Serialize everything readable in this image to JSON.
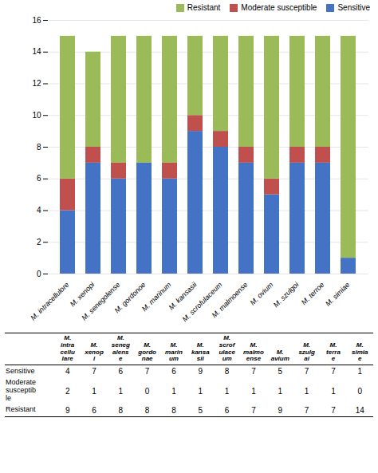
{
  "chart_data": {
    "type": "bar",
    "stacked": true,
    "categories": [
      "M. intracellulore",
      "M. xenopi",
      "M. senegolense",
      "M. gordonoe",
      "M. marinum",
      "M. kansasii",
      "M. scrofulaceum",
      "M. malmoense",
      "M. ovium",
      "M. szulgoi",
      "M. terroe",
      "M. simiae"
    ],
    "series": [
      {
        "name": "Sensitive",
        "color": "#4472C4",
        "values": [
          4,
          7,
          6,
          7,
          6,
          9,
          8,
          7,
          5,
          7,
          7,
          1
        ]
      },
      {
        "name": "Moderate susceptible",
        "color": "#C0504D",
        "values": [
          2,
          1,
          1,
          0,
          1,
          1,
          1,
          1,
          1,
          1,
          1,
          0
        ]
      },
      {
        "name": "Resistant",
        "color": "#9BBB59",
        "values": [
          9,
          6,
          8,
          8,
          8,
          5,
          6,
          7,
          9,
          7,
          7,
          14
        ]
      }
    ],
    "ylim": [
      0,
      16
    ],
    "yticks": [
      0,
      2,
      4,
      6,
      8,
      10,
      12,
      14,
      16
    ],
    "grid": true,
    "legend": "upper right",
    "table": {
      "columns": [
        "M.\nintra\ncellu\nlare",
        "M.\nxenop\ni",
        "M.\nseneg\nalens\ne",
        "M.\ngordo\nnae",
        "M.\nmarin\num",
        "M.\nkansa\nsii",
        "M.\nscrof\nulace\num",
        "M.\nmalmo\nense",
        "M.\navium",
        "M.\nszulg\nai",
        "M.\nterra\ne",
        "M.\nsimia\ne"
      ],
      "rows": [
        {
          "label": "Sensitive",
          "values": [
            4,
            7,
            6,
            7,
            6,
            9,
            8,
            7,
            5,
            7,
            7,
            1
          ]
        },
        {
          "label": "Moderate\nsusceptib\nle",
          "values": [
            2,
            1,
            1,
            0,
            1,
            1,
            1,
            1,
            1,
            1,
            1,
            0
          ]
        },
        {
          "label": "Resistant",
          "values": [
            9,
            6,
            8,
            8,
            8,
            5,
            6,
            7,
            9,
            7,
            7,
            14
          ]
        }
      ]
    }
  }
}
